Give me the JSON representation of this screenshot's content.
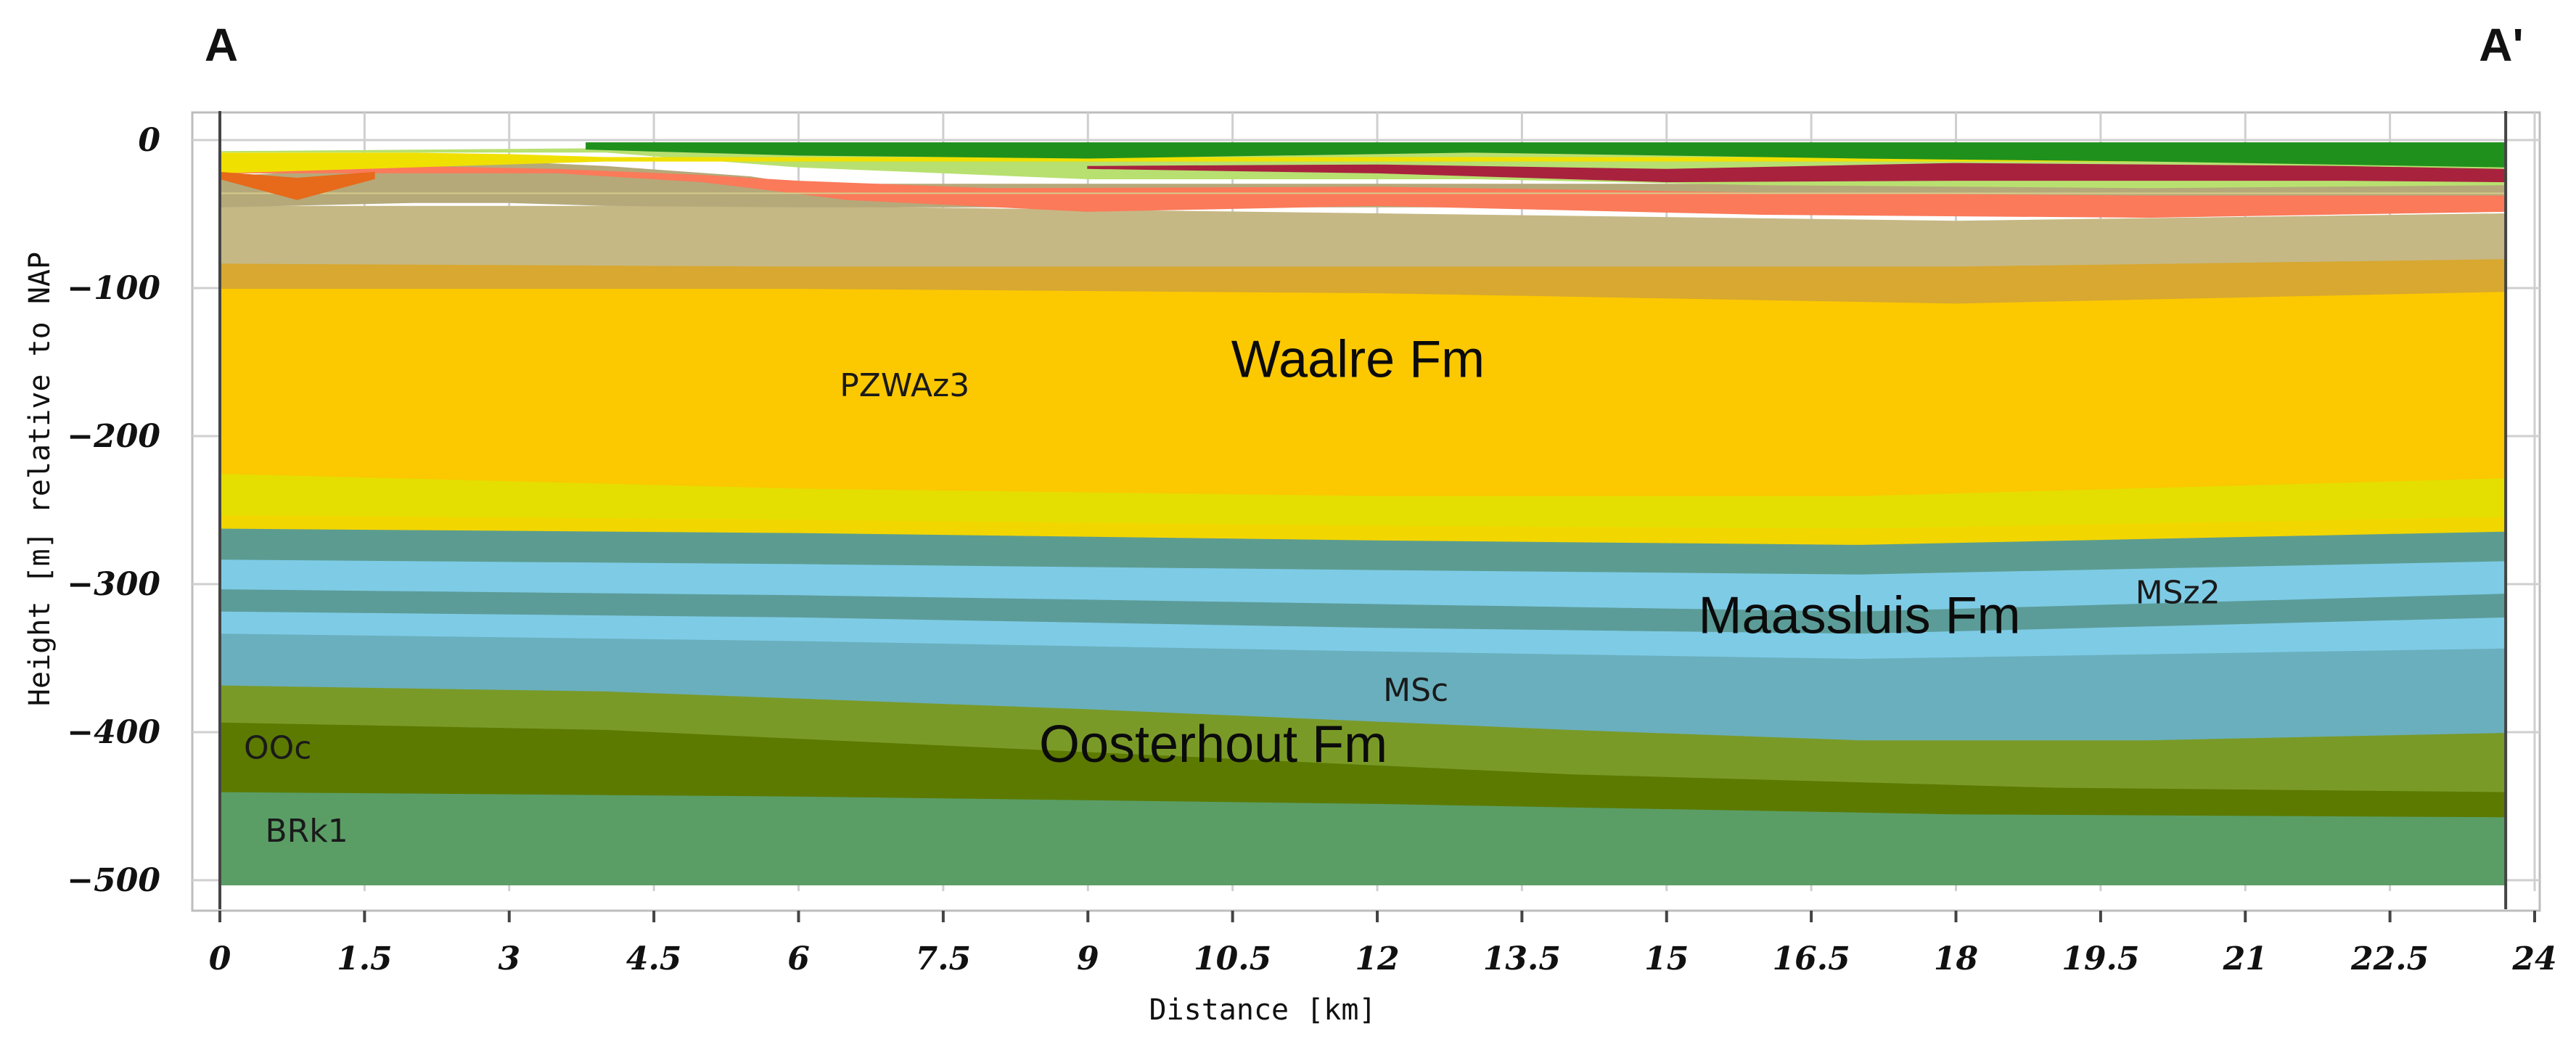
{
  "section": {
    "start_label": "A",
    "end_label": "A'"
  },
  "axes": {
    "x": {
      "label": "Distance [km]",
      "range": [
        0,
        24
      ],
      "ticks": [
        0,
        1.5,
        3,
        4.5,
        6,
        7.5,
        9,
        10.5,
        12,
        13.5,
        15,
        16.5,
        18,
        19.5,
        21,
        22.5,
        24
      ],
      "tick_labels": [
        "0",
        "1.5",
        "3",
        "4.5",
        "6",
        "7.5",
        "9",
        "10.5",
        "12",
        "13.5",
        "15",
        "16.5",
        "18",
        "19.5",
        "21",
        "22.5",
        "24"
      ],
      "section_end_km": 23.7
    },
    "y": {
      "label": "Height [m] relative to NAP",
      "range": [
        -500,
        0
      ],
      "ticks": [
        0,
        -100,
        -200,
        -300,
        -400,
        -500
      ],
      "tick_labels": [
        "0",
        "−100",
        "−200",
        "−300",
        "−400",
        "−500"
      ]
    },
    "grid": true
  },
  "formation_labels": [
    {
      "text": "Waalre Fm",
      "x_km": 11.8,
      "depth_m": -160
    },
    {
      "text": "Maassluis Fm",
      "x_km": 17.0,
      "depth_m": -333
    },
    {
      "text": "Oosterhout Fm",
      "x_km": 10.3,
      "depth_m": -420
    }
  ],
  "unit_labels": [
    {
      "text": "PZWAz3",
      "x_km": 7.1,
      "depth_m": -173
    },
    {
      "text": "MSz2",
      "x_km": 20.3,
      "depth_m": -313
    },
    {
      "text": "MSc",
      "x_km": 12.4,
      "depth_m": -379
    },
    {
      "text": "OOc",
      "x_km": 0.6,
      "depth_m": -418
    },
    {
      "text": "BRk1",
      "x_km": 0.9,
      "depth_m": -474
    }
  ],
  "layers": [
    {
      "color": "#5a9e66",
      "top": [
        [
          0,
          -440
        ],
        [
          6,
          -443
        ],
        [
          12,
          -448
        ],
        [
          18,
          -455
        ],
        [
          23.7,
          -457
        ]
      ],
      "bottom": [
        [
          0,
          -503
        ],
        [
          23.7,
          -503
        ]
      ]
    },
    {
      "color": "#5c7a00",
      "top": [
        [
          0,
          -393
        ],
        [
          4,
          -398
        ],
        [
          9,
          -413
        ],
        [
          14,
          -428
        ],
        [
          19,
          -437
        ],
        [
          23.7,
          -440
        ]
      ],
      "bottom": [
        [
          0,
          -440
        ],
        [
          6,
          -443
        ],
        [
          12,
          -448
        ],
        [
          18,
          -455
        ],
        [
          23.7,
          -457
        ]
      ]
    },
    {
      "color": "#7a9a28",
      "top": [
        [
          0,
          -368
        ],
        [
          4,
          -372
        ],
        [
          9,
          -384
        ],
        [
          14,
          -398
        ],
        [
          17,
          -405
        ],
        [
          20,
          -405
        ],
        [
          23.7,
          -400
        ]
      ],
      "bottom": [
        [
          0,
          -393
        ],
        [
          4,
          -398
        ],
        [
          9,
          -413
        ],
        [
          14,
          -428
        ],
        [
          19,
          -437
        ],
        [
          23.7,
          -440
        ]
      ]
    },
    {
      "color": "#6aafbd",
      "top": [
        [
          0,
          -333
        ],
        [
          6,
          -338
        ],
        [
          12,
          -345
        ],
        [
          17,
          -350
        ],
        [
          23.7,
          -343
        ]
      ],
      "bottom": [
        [
          0,
          -368
        ],
        [
          4,
          -372
        ],
        [
          9,
          -384
        ],
        [
          14,
          -398
        ],
        [
          17,
          -405
        ],
        [
          20,
          -405
        ],
        [
          23.7,
          -400
        ]
      ]
    },
    {
      "color": "#7ecbe6",
      "top": [
        [
          0,
          -318
        ],
        [
          6,
          -322
        ],
        [
          12,
          -329
        ],
        [
          17,
          -333
        ],
        [
          23.7,
          -322
        ]
      ],
      "bottom": [
        [
          0,
          -333
        ],
        [
          6,
          -338
        ],
        [
          12,
          -345
        ],
        [
          17,
          -350
        ],
        [
          23.7,
          -343
        ]
      ]
    },
    {
      "color": "#5c9c98",
      "top": [
        [
          0,
          -303
        ],
        [
          6,
          -307
        ],
        [
          12,
          -313
        ],
        [
          17,
          -318
        ],
        [
          23.7,
          -306
        ]
      ],
      "bottom": [
        [
          0,
          -318
        ],
        [
          6,
          -322
        ],
        [
          12,
          -329
        ],
        [
          17,
          -333
        ],
        [
          23.7,
          -322
        ]
      ]
    },
    {
      "color": "#7ecbe6",
      "top": [
        [
          0,
          -283
        ],
        [
          6,
          -286
        ],
        [
          12,
          -290
        ],
        [
          17,
          -293
        ],
        [
          23.7,
          -284
        ]
      ],
      "bottom": [
        [
          0,
          -303
        ],
        [
          6,
          -307
        ],
        [
          12,
          -313
        ],
        [
          17,
          -318
        ],
        [
          23.7,
          -306
        ]
      ]
    },
    {
      "color": "#5c9c90",
      "top": [
        [
          0,
          -262
        ],
        [
          6,
          -265
        ],
        [
          12,
          -270
        ],
        [
          17,
          -273
        ],
        [
          23.7,
          -264
        ]
      ],
      "bottom": [
        [
          0,
          -283
        ],
        [
          6,
          -286
        ],
        [
          12,
          -290
        ],
        [
          17,
          -293
        ],
        [
          23.7,
          -284
        ]
      ]
    },
    {
      "color": "#f2d600",
      "top": [
        [
          0,
          -253
        ],
        [
          6,
          -256
        ],
        [
          12,
          -260
        ],
        [
          17,
          -262
        ],
        [
          23.7,
          -254
        ]
      ],
      "bottom": [
        [
          0,
          -262
        ],
        [
          6,
          -265
        ],
        [
          12,
          -270
        ],
        [
          17,
          -273
        ],
        [
          23.7,
          -264
        ]
      ]
    },
    {
      "color": "#e4df00",
      "top": [
        [
          0,
          -225
        ],
        [
          6,
          -235
        ],
        [
          12,
          -240
        ],
        [
          17,
          -240
        ],
        [
          23.7,
          -228
        ]
      ],
      "bottom": [
        [
          0,
          -253
        ],
        [
          6,
          -256
        ],
        [
          12,
          -260
        ],
        [
          17,
          -262
        ],
        [
          23.7,
          -254
        ]
      ]
    },
    {
      "color": "#fcc800",
      "top": [
        [
          0,
          -100
        ],
        [
          6,
          -100
        ],
        [
          12,
          -103
        ],
        [
          18,
          -110
        ],
        [
          23.7,
          -102
        ]
      ],
      "bottom": [
        [
          0,
          -225
        ],
        [
          6,
          -235
        ],
        [
          12,
          -240
        ],
        [
          17,
          -240
        ],
        [
          23.7,
          -228
        ]
      ]
    },
    {
      "color": "#d8a830",
      "top": [
        [
          0,
          -83
        ],
        [
          6,
          -85
        ],
        [
          12,
          -85
        ],
        [
          18,
          -85
        ],
        [
          23.7,
          -80
        ]
      ],
      "bottom": [
        [
          0,
          -100
        ],
        [
          6,
          -100
        ],
        [
          12,
          -103
        ],
        [
          18,
          -110
        ],
        [
          23.7,
          -102
        ]
      ]
    },
    {
      "color": "#c6b884",
      "top": [
        [
          0,
          -45
        ],
        [
          6,
          -45
        ],
        [
          12,
          -50
        ],
        [
          18,
          -55
        ],
        [
          23.7,
          -50
        ]
      ],
      "bottom": [
        [
          0,
          -83
        ],
        [
          6,
          -85
        ],
        [
          12,
          -85
        ],
        [
          18,
          -85
        ],
        [
          23.7,
          -80
        ]
      ]
    },
    {
      "color": "#b5a97a",
      "top": [
        [
          0,
          -25
        ],
        [
          2,
          -18
        ],
        [
          3,
          -15
        ],
        [
          4,
          -18
        ],
        [
          5.5,
          -25
        ],
        [
          6,
          -30
        ],
        [
          23.7,
          -30
        ]
      ],
      "bottom": [
        [
          0,
          -45
        ],
        [
          2,
          -42
        ],
        [
          3,
          -42
        ],
        [
          4,
          -44
        ],
        [
          6,
          -45
        ],
        [
          23.7,
          -45
        ]
      ]
    },
    {
      "color": "#fa7a5a",
      "top": [
        [
          0,
          -20
        ],
        [
          2,
          -18
        ],
        [
          3.5,
          -20
        ],
        [
          5,
          -24
        ],
        [
          6,
          -28
        ],
        [
          8,
          -33
        ],
        [
          12,
          -32
        ],
        [
          16,
          -36
        ],
        [
          20,
          -38
        ],
        [
          23.7,
          -38
        ]
      ],
      "bottom": [
        [
          0,
          -22
        ],
        [
          3.5,
          -22
        ],
        [
          5,
          -28
        ],
        [
          6.5,
          -40
        ],
        [
          9,
          -48
        ],
        [
          12,
          -44
        ],
        [
          16,
          -50
        ],
        [
          20,
          -52
        ],
        [
          23.7,
          -48
        ]
      ]
    },
    {
      "color": "#d8cc8a",
      "top": [
        [
          0,
          -36
        ],
        [
          23.7,
          -36
        ]
      ],
      "bottom": [
        [
          0,
          -36
        ],
        [
          23.7,
          -36
        ]
      ]
    },
    {
      "color": "#b8e070",
      "top": [
        [
          0,
          -8
        ],
        [
          4,
          -6
        ],
        [
          8,
          -8
        ],
        [
          14,
          -8
        ],
        [
          20,
          -10
        ],
        [
          23.7,
          -10
        ]
      ],
      "bottom": [
        [
          4,
          -8
        ],
        [
          6,
          -18
        ],
        [
          9,
          -26
        ],
        [
          13,
          -26
        ],
        [
          16,
          -30
        ],
        [
          20,
          -32
        ],
        [
          23.7,
          -30
        ]
      ]
    },
    {
      "color": "#a8223e",
      "top": [
        [
          9,
          -18
        ],
        [
          12,
          -17
        ],
        [
          15,
          -20
        ],
        [
          18,
          -16
        ],
        [
          22,
          -18
        ],
        [
          23.7,
          -20
        ]
      ],
      "bottom": [
        [
          9,
          -19
        ],
        [
          12,
          -22
        ],
        [
          15,
          -28
        ],
        [
          18,
          -27
        ],
        [
          22,
          -27
        ],
        [
          23.7,
          -28
        ]
      ]
    },
    {
      "color": "#f0e000",
      "top": [
        [
          0,
          -9
        ],
        [
          2,
          -9
        ],
        [
          3,
          -10
        ],
        [
          4,
          -12
        ],
        [
          23.7,
          -12
        ]
      ],
      "bottom": [
        [
          0,
          -22
        ],
        [
          1.5,
          -19
        ],
        [
          3,
          -16
        ],
        [
          4,
          -14
        ],
        [
          23.7,
          -14
        ]
      ]
    },
    {
      "color": "#e66a1a",
      "top": [
        [
          0,
          -22
        ],
        [
          0.8,
          -26
        ],
        [
          1.6,
          -22
        ]
      ],
      "bottom": [
        [
          0,
          -26
        ],
        [
          0.8,
          -40
        ],
        [
          1.6,
          -26
        ]
      ]
    },
    {
      "color": "#20901c",
      "top": [
        [
          3.8,
          -2
        ],
        [
          8,
          -2
        ],
        [
          13,
          -2
        ],
        [
          18,
          -2
        ],
        [
          23.7,
          -2
        ]
      ],
      "bottom": [
        [
          3.8,
          -6
        ],
        [
          6,
          -10
        ],
        [
          9,
          -12
        ],
        [
          13,
          -8
        ],
        [
          17,
          -12
        ],
        [
          20,
          -14
        ],
        [
          23.7,
          -18
        ]
      ]
    }
  ],
  "colors": {
    "axis": "#444444",
    "grid": "#cfcfcf",
    "frame": "#888888"
  }
}
